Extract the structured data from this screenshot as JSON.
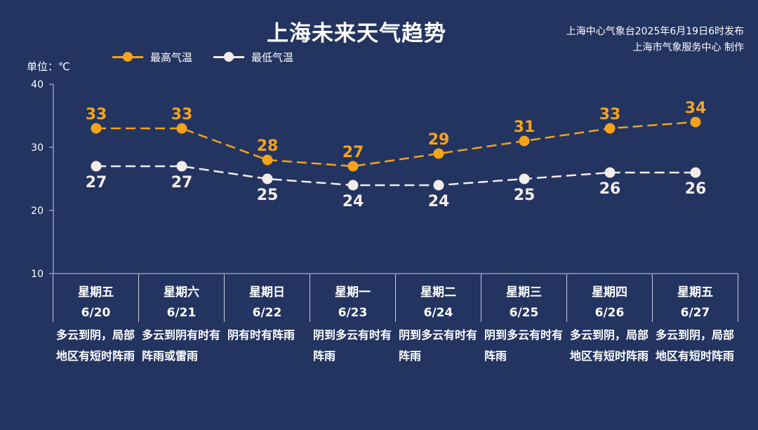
{
  "title": "上海未来天气趋势",
  "source": {
    "line1": "上海中心气象台2025年6月19日6时发布",
    "line2": "上海市气象服务中心 制作"
  },
  "unit_label": "单位：℃",
  "colors": {
    "background": "#233461",
    "high": "#f5a31b",
    "low": "#f4ecea",
    "axis": "#c8cfe0"
  },
  "legend": {
    "high_label": "最高气温",
    "low_label": "最低气温"
  },
  "chart_data": {
    "type": "line",
    "title": "上海未来天气趋势",
    "ylabel": "单位：℃",
    "ylim": [
      10,
      40
    ],
    "yticks": [
      10,
      20,
      30,
      40
    ],
    "x": [
      "6/20",
      "6/21",
      "6/22",
      "6/23",
      "6/24",
      "6/25",
      "6/26",
      "6/27"
    ],
    "series": [
      {
        "name": "最高气温",
        "values": [
          33,
          33,
          28,
          27,
          29,
          31,
          33,
          34
        ],
        "color": "#f5a31b",
        "style": "dashed",
        "label_position": "above"
      },
      {
        "name": "最低气温",
        "values": [
          27,
          27,
          25,
          24,
          24,
          25,
          26,
          26
        ],
        "color": "#f4ecea",
        "style": "dashed",
        "label_position": "below"
      }
    ],
    "legend_position": "top-left",
    "grid": false
  },
  "days": [
    {
      "weekday": "星期五",
      "date": "6/20",
      "desc": "多云到阴，局部地区有短时阵雨"
    },
    {
      "weekday": "星期六",
      "date": "6/21",
      "desc": "多云到阴有时有阵雨或雷雨"
    },
    {
      "weekday": "星期日",
      "date": "6/22",
      "desc": "阴有时有阵雨"
    },
    {
      "weekday": "星期一",
      "date": "6/23",
      "desc": "阴到多云有时有阵雨"
    },
    {
      "weekday": "星期二",
      "date": "6/24",
      "desc": "阴到多云有时有阵雨"
    },
    {
      "weekday": "星期三",
      "date": "6/25",
      "desc": "阴到多云有时有阵雨"
    },
    {
      "weekday": "星期四",
      "date": "6/26",
      "desc": "多云到阴，局部地区有短时阵雨"
    },
    {
      "weekday": "星期五",
      "date": "6/27",
      "desc": "多云到阴，局部地区有短时阵雨"
    }
  ]
}
